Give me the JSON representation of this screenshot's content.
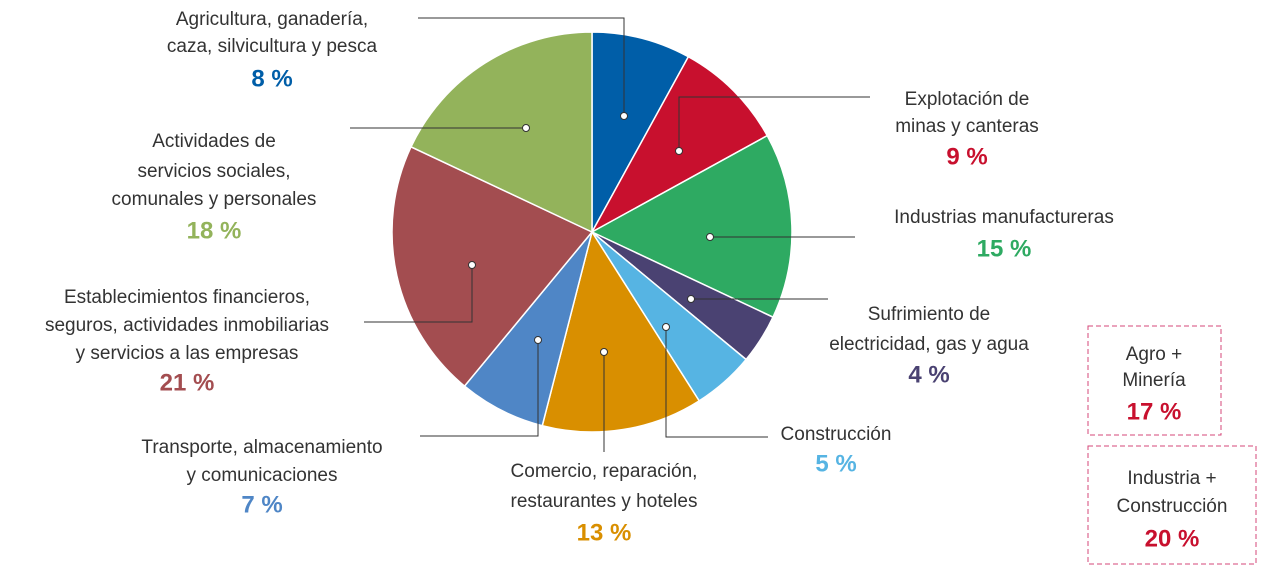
{
  "chart_data": {
    "type": "pie",
    "categories": [
      [
        "Agricultura, ganadería,",
        "caza, silvicultura y pesca"
      ],
      [
        "Explotación de",
        "minas y canteras"
      ],
      [
        "Industrias manufactureras"
      ],
      [
        "Sufrimiento de",
        "electricidad, gas y agua"
      ],
      [
        "Construcción"
      ],
      [
        "Comercio, reparación,",
        "restaurantes y hoteles"
      ],
      [
        "Transporte, almacenamiento",
        "y comunicaciones"
      ],
      [
        "Establecimientos financieros,",
        "seguros, actividades inmobiliarias",
        "y servicios a las empresas"
      ],
      [
        "Actividades de",
        "servicios sociales,",
        "comunales y personales"
      ]
    ],
    "values": [
      8,
      9,
      15,
      4,
      5,
      13,
      7,
      21,
      18
    ],
    "value_labels": [
      "8 %",
      "9 %",
      "15 %",
      "4 %",
      "5 %",
      "13 %",
      "7 %",
      "21 %",
      "18 %"
    ],
    "colors": [
      "#005ea8",
      "#c8102e",
      "#2eaa62",
      "#4a4272",
      "#56b4e3",
      "#d98f00",
      "#4f86c6",
      "#a34d50",
      "#93b35b"
    ],
    "annotations": [
      {
        "text": [
          "Agro +",
          "Minería"
        ],
        "value": 17,
        "value_label": "17 %"
      },
      {
        "text": [
          "Industria +",
          "Construcción"
        ],
        "value": 20,
        "value_label": "20 %"
      }
    ]
  }
}
